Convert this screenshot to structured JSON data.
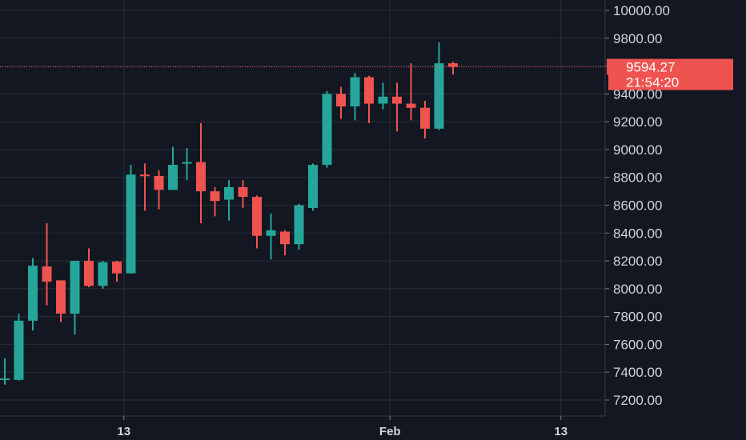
{
  "chart_data": {
    "type": "candlestick",
    "y_axis": {
      "range": [
        7050,
        10080
      ],
      "ticks": [
        "7200.00",
        "7400.00",
        "7600.00",
        "7800.00",
        "8000.00",
        "8200.00",
        "8400.00",
        "8600.00",
        "8800.00",
        "9000.00",
        "9200.00",
        "9400.00",
        "9600.00",
        "9800.00",
        "10000.00"
      ]
    },
    "x_axis": {
      "ticks": [
        {
          "label": "13",
          "index": 8.5
        },
        {
          "label": "Feb",
          "index": 27.5
        },
        {
          "label": "13",
          "index": 39.7
        }
      ]
    },
    "grid": true,
    "up_color": "#26a69a",
    "down_color": "#ef5350",
    "last_price": {
      "value": "9594.27",
      "countdown": "21:54:20",
      "price": 9594.27
    },
    "candles": [
      {
        "o": 7350,
        "h": 7500,
        "l": 7310,
        "c": 7355
      },
      {
        "o": 7345,
        "h": 7820,
        "l": 7340,
        "c": 7770
      },
      {
        "o": 7770,
        "h": 8220,
        "l": 7700,
        "c": 8165
      },
      {
        "o": 8160,
        "h": 8470,
        "l": 7880,
        "c": 8050
      },
      {
        "o": 8060,
        "h": 8060,
        "l": 7760,
        "c": 7820
      },
      {
        "o": 7820,
        "h": 8200,
        "l": 7670,
        "c": 8200
      },
      {
        "o": 8200,
        "h": 8290,
        "l": 8010,
        "c": 8020
      },
      {
        "o": 8020,
        "h": 8200,
        "l": 8000,
        "c": 8190
      },
      {
        "o": 8195,
        "h": 8200,
        "l": 8050,
        "c": 8110
      },
      {
        "o": 8110,
        "h": 8890,
        "l": 8110,
        "c": 8820
      },
      {
        "o": 8820,
        "h": 8900,
        "l": 8560,
        "c": 8815
      },
      {
        "o": 8810,
        "h": 8850,
        "l": 8570,
        "c": 8710
      },
      {
        "o": 8710,
        "h": 9020,
        "l": 8710,
        "c": 8890
      },
      {
        "o": 8900,
        "h": 9010,
        "l": 8780,
        "c": 8910
      },
      {
        "o": 8910,
        "h": 9190,
        "l": 8470,
        "c": 8700
      },
      {
        "o": 8700,
        "h": 8730,
        "l": 8520,
        "c": 8630
      },
      {
        "o": 8640,
        "h": 8780,
        "l": 8490,
        "c": 8730
      },
      {
        "o": 8730,
        "h": 8780,
        "l": 8580,
        "c": 8660
      },
      {
        "o": 8660,
        "h": 8670,
        "l": 8290,
        "c": 8380
      },
      {
        "o": 8380,
        "h": 8540,
        "l": 8210,
        "c": 8420
      },
      {
        "o": 8410,
        "h": 8420,
        "l": 8240,
        "c": 8320
      },
      {
        "o": 8320,
        "h": 8610,
        "l": 8280,
        "c": 8600
      },
      {
        "o": 8580,
        "h": 8900,
        "l": 8560,
        "c": 8890
      },
      {
        "o": 8890,
        "h": 9420,
        "l": 8870,
        "c": 9400
      },
      {
        "o": 9400,
        "h": 9450,
        "l": 9220,
        "c": 9310
      },
      {
        "o": 9310,
        "h": 9550,
        "l": 9210,
        "c": 9520
      },
      {
        "o": 9520,
        "h": 9530,
        "l": 9190,
        "c": 9330
      },
      {
        "o": 9330,
        "h": 9480,
        "l": 9290,
        "c": 9380
      },
      {
        "o": 9380,
        "h": 9480,
        "l": 9130,
        "c": 9330
      },
      {
        "o": 9330,
        "h": 9620,
        "l": 9210,
        "c": 9300
      },
      {
        "o": 9300,
        "h": 9350,
        "l": 9080,
        "c": 9150
      },
      {
        "o": 9150,
        "h": 9770,
        "l": 9140,
        "c": 9620
      },
      {
        "o": 9620,
        "h": 9630,
        "l": 9540,
        "c": 9594.27
      }
    ]
  }
}
